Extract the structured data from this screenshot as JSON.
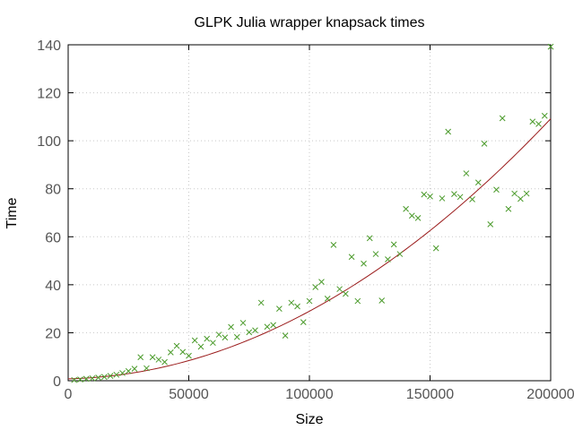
{
  "chart_data": {
    "type": "scatter",
    "title": "GLPK Julia wrapper knapsack times",
    "xlabel": "Size",
    "ylabel": "Time",
    "xlim": [
      0,
      200000
    ],
    "ylim": [
      0,
      140
    ],
    "x_ticks": [
      "0",
      "50000",
      "100000",
      "150000",
      "200000"
    ],
    "x_tick_values": [
      0,
      50000,
      100000,
      150000,
      200000
    ],
    "y_ticks": [
      "0",
      "20",
      "40",
      "60",
      "80",
      "100",
      "120",
      "140"
    ],
    "y_tick_values": [
      0,
      20,
      40,
      60,
      80,
      100,
      120,
      140
    ],
    "grid": true,
    "marker_color": "#4a9a2a",
    "fit_color": "#9b1c1c",
    "grid_color": "#c8c8c8",
    "points": [
      [
        2500,
        0.3
      ],
      [
        5000,
        0.5
      ],
      [
        7500,
        0.8
      ],
      [
        10000,
        1.0
      ],
      [
        12500,
        1.3
      ],
      [
        15000,
        1.6
      ],
      [
        17500,
        2.0
      ],
      [
        20000,
        2.5
      ],
      [
        22500,
        3.2
      ],
      [
        25000,
        4.0
      ],
      [
        27500,
        5.0
      ],
      [
        30000,
        9.8
      ],
      [
        32500,
        5.2
      ],
      [
        35000,
        9.8
      ],
      [
        37500,
        8.8
      ],
      [
        40000,
        7.8
      ],
      [
        42500,
        11.8
      ],
      [
        45000,
        14.5
      ],
      [
        47500,
        12.0
      ],
      [
        50000,
        10.4
      ],
      [
        52500,
        16.8
      ],
      [
        55000,
        14.2
      ],
      [
        57500,
        17.5
      ],
      [
        60000,
        15.8
      ],
      [
        62500,
        19.2
      ],
      [
        65000,
        18.0
      ],
      [
        67500,
        22.4
      ],
      [
        70000,
        18.2
      ],
      [
        72500,
        24.1
      ],
      [
        75000,
        20.2
      ],
      [
        77500,
        21.0
      ],
      [
        80000,
        32.5
      ],
      [
        82500,
        22.5
      ],
      [
        85000,
        23.2
      ],
      [
        87500,
        30.0
      ],
      [
        90000,
        18.8
      ],
      [
        92500,
        32.5
      ],
      [
        95000,
        31.0
      ],
      [
        97500,
        24.4
      ],
      [
        100000,
        33.2
      ],
      [
        102500,
        39.0
      ],
      [
        105000,
        41.2
      ],
      [
        107500,
        34.2
      ],
      [
        110000,
        56.6
      ],
      [
        112500,
        38.2
      ],
      [
        115000,
        36.2
      ],
      [
        117500,
        51.6
      ],
      [
        120000,
        33.2
      ],
      [
        122500,
        48.8
      ],
      [
        125000,
        59.4
      ],
      [
        127500,
        52.8
      ],
      [
        130000,
        33.4
      ],
      [
        132500,
        50.6
      ],
      [
        135000,
        56.8
      ],
      [
        137500,
        52.8
      ],
      [
        140000,
        71.6
      ],
      [
        142500,
        68.8
      ],
      [
        145000,
        67.8
      ],
      [
        147500,
        77.6
      ],
      [
        150000,
        76.8
      ],
      [
        152500,
        55.2
      ],
      [
        155000,
        76.0
      ],
      [
        157500,
        103.8
      ],
      [
        160000,
        77.8
      ],
      [
        162500,
        76.6
      ],
      [
        165000,
        86.4
      ],
      [
        167500,
        75.6
      ],
      [
        170000,
        82.6
      ],
      [
        172500,
        98.8
      ],
      [
        175000,
        65.2
      ],
      [
        177500,
        79.6
      ],
      [
        180000,
        109.4
      ],
      [
        182500,
        71.6
      ],
      [
        185000,
        78.0
      ],
      [
        187500,
        75.8
      ],
      [
        190000,
        78.0
      ],
      [
        192500,
        108.0
      ],
      [
        195000,
        107.0
      ],
      [
        197500,
        110.4
      ],
      [
        200000,
        139.2
      ]
    ],
    "fit": {
      "a": 2.6e-09,
      "b": 2.18e-05,
      "c": 0.8
    }
  }
}
